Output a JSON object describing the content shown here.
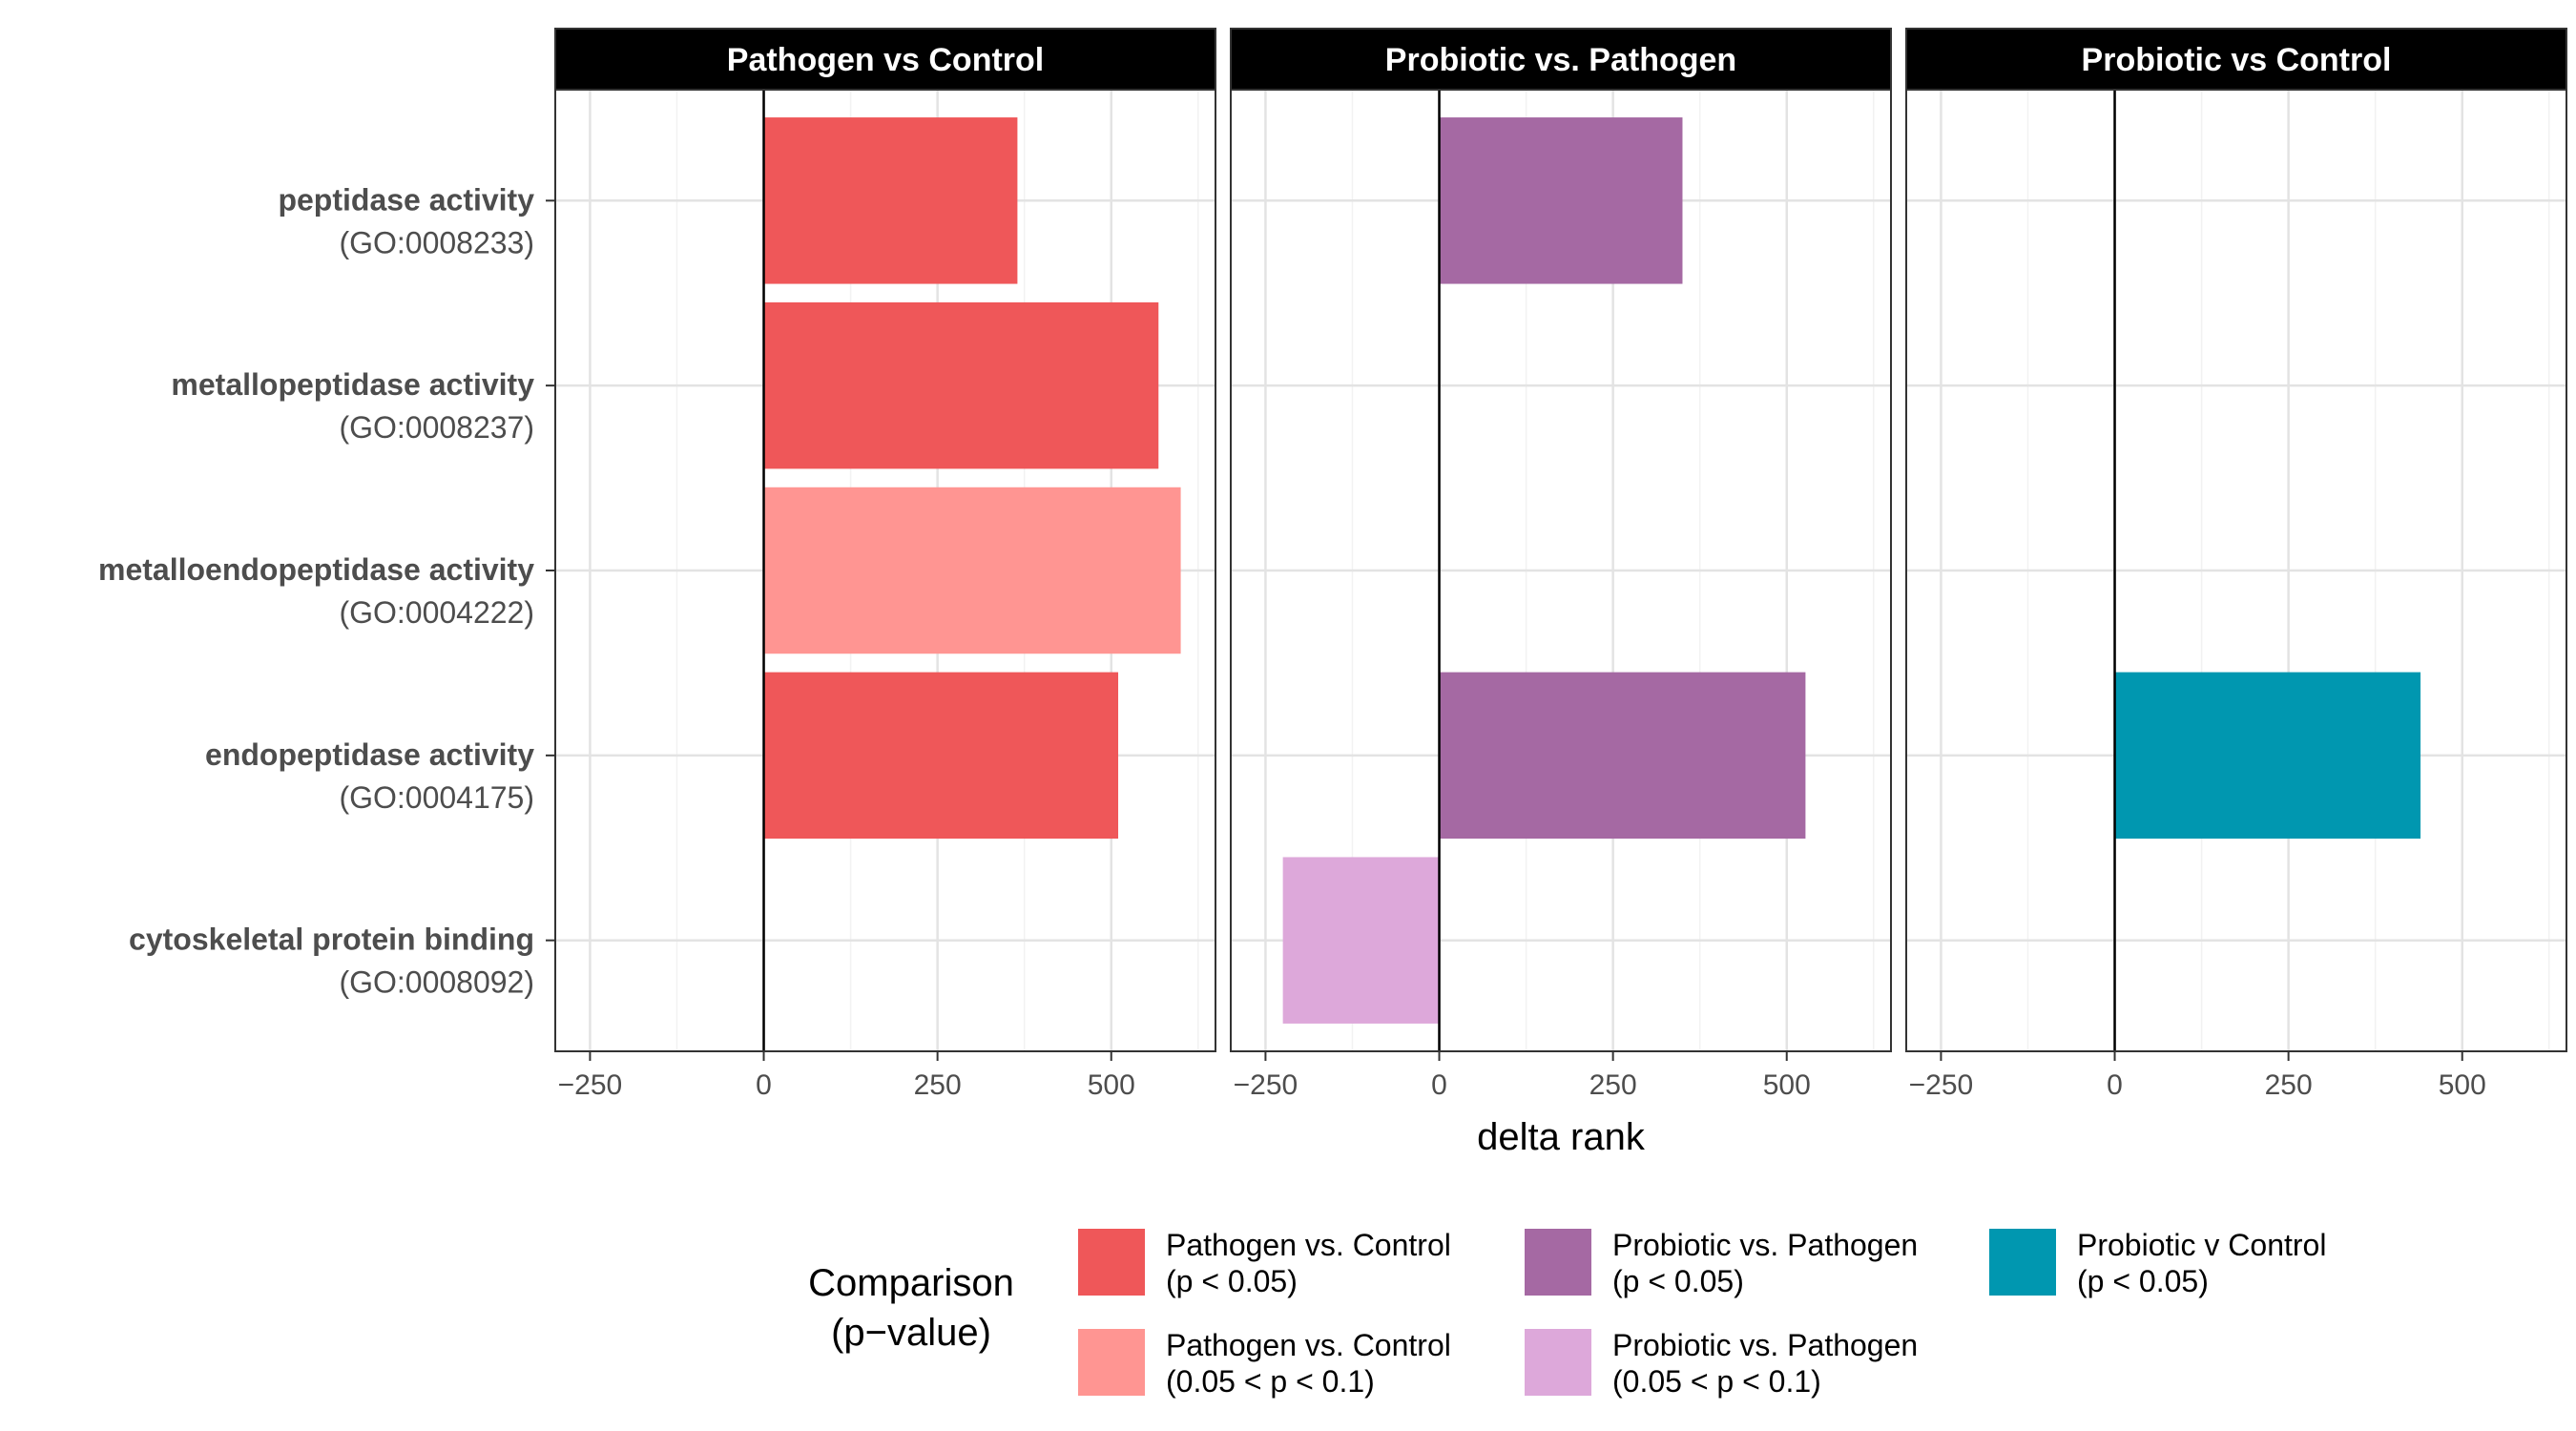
{
  "chart_data": {
    "type": "bar",
    "orientation": "horizontal",
    "xlabel": "delta rank",
    "xlim": [
      -300,
      650
    ],
    "xticks": [
      -250,
      0,
      250,
      500
    ],
    "xtick_labels": [
      "−250",
      "0",
      "250",
      "500"
    ],
    "grid": true,
    "categories": [
      {
        "name": "peptidase activity",
        "id": "(GO:0008233)"
      },
      {
        "name": "metallopeptidase activity",
        "id": "(GO:0008237)"
      },
      {
        "name": "metalloendopeptidase activity",
        "id": "(GO:0004222)"
      },
      {
        "name": "endopeptidase activity",
        "id": "(GO:0004175)"
      },
      {
        "name": "cytoskeletal protein binding",
        "id": "(GO:0008092)"
      }
    ],
    "panels": [
      {
        "title": "Pathogen vs Control",
        "bars": [
          {
            "category": 0,
            "value": 365,
            "group": "pc_sig"
          },
          {
            "category": 1,
            "value": 568,
            "group": "pc_sig"
          },
          {
            "category": 2,
            "value": 600,
            "group": "pc_marg"
          },
          {
            "category": 3,
            "value": 510,
            "group": "pc_sig"
          }
        ]
      },
      {
        "title": "Probiotic vs. Pathogen",
        "bars": [
          {
            "category": 0,
            "value": 350,
            "group": "pp_sig"
          },
          {
            "category": 3,
            "value": 527,
            "group": "pp_sig"
          },
          {
            "category": 4,
            "value": -225,
            "group": "pp_marg"
          }
        ]
      },
      {
        "title": "Probiotic vs Control",
        "bars": [
          {
            "category": 3,
            "value": 440,
            "group": "prc_sig"
          }
        ]
      }
    ],
    "legend": {
      "title_lines": [
        "Comparison",
        "(p−value)"
      ],
      "placement": "bottom",
      "entries": [
        {
          "key": "pc_sig",
          "lines": [
            "Pathogen vs. Control",
            "(p < 0.05)"
          ],
          "color": "#EF5759"
        },
        {
          "key": "pc_marg",
          "lines": [
            "Pathogen vs. Control",
            "(0.05 < p < 0.1)"
          ],
          "color": "#FF9592"
        },
        {
          "key": "pp_sig",
          "lines": [
            "Probiotic vs. Pathogen",
            "(p < 0.05)"
          ],
          "color": "#A569A3"
        },
        {
          "key": "pp_marg",
          "lines": [
            "Probiotic vs. Pathogen",
            "(0.05 < p < 0.1)"
          ],
          "color": "#DDA8DA"
        },
        {
          "key": "prc_sig",
          "lines": [
            "Probiotic v Control",
            "(p < 0.05)"
          ],
          "color": "#0097B0"
        }
      ]
    }
  }
}
